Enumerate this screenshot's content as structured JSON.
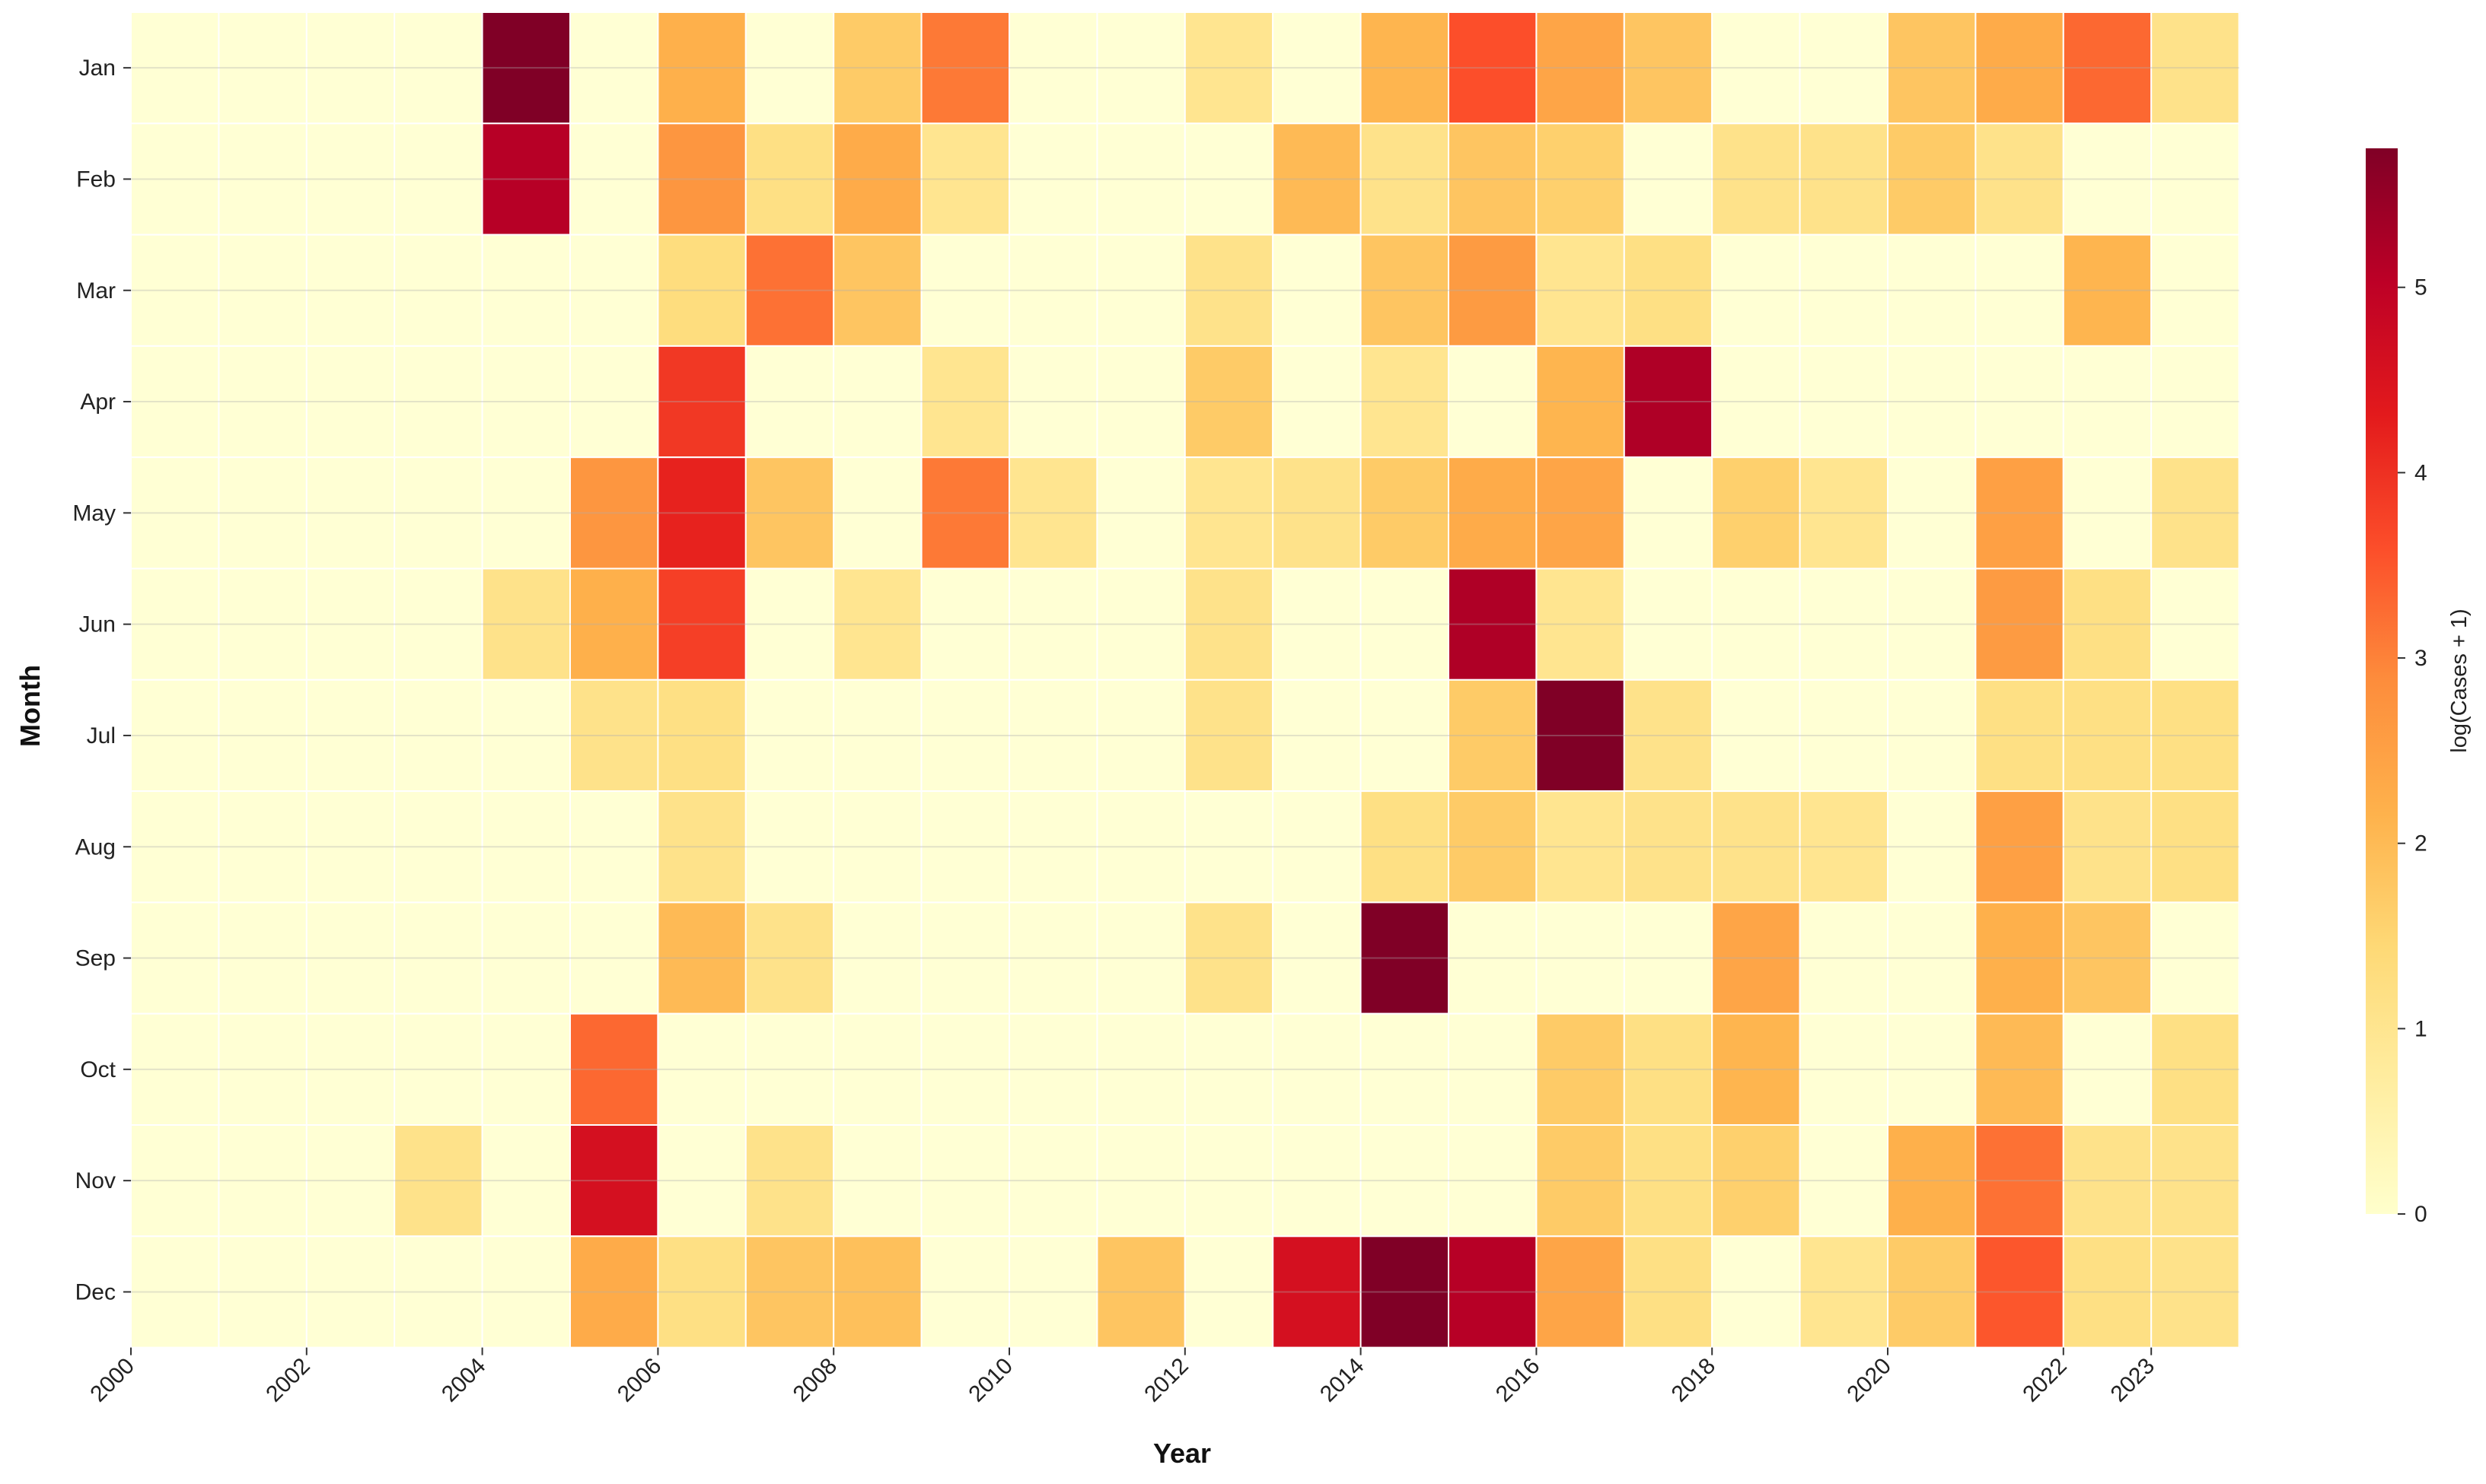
{
  "chart_data": {
    "type": "heatmap",
    "title": "",
    "xlabel": "Year",
    "ylabel": "Month",
    "colorbar_label": "log(Cases + 1)",
    "color_range": [
      0,
      5.75
    ],
    "colorbar_ticks": [
      0,
      1,
      2,
      3,
      4,
      5
    ],
    "colormap": [
      "#ffffcc",
      "#ffeda0",
      "#fed976",
      "#feb24c",
      "#fd8d3c",
      "#fc4e2a",
      "#e31a1c",
      "#bd0026",
      "#800026"
    ],
    "years": [
      2000,
      2001,
      2002,
      2003,
      2004,
      2005,
      2006,
      2007,
      2008,
      2009,
      2010,
      2011,
      2012,
      2013,
      2014,
      2015,
      2016,
      2017,
      2018,
      2019,
      2020,
      2021,
      2022,
      2023
    ],
    "x_tick_labels": [
      "2000",
      "2002",
      "2004",
      "2006",
      "2008",
      "2010",
      "2012",
      "2014",
      "2016",
      "2018",
      "2020",
      "2022",
      "2023"
    ],
    "months": [
      "Jan",
      "Feb",
      "Mar",
      "Apr",
      "May",
      "Jun",
      "Jul",
      "Aug",
      "Sep",
      "Oct",
      "Nov",
      "Dec"
    ],
    "values": [
      [
        0,
        0,
        0,
        0,
        5.75,
        0,
        2.2,
        0,
        1.7,
        3.1,
        0,
        0,
        1.0,
        0,
        2.1,
        3.6,
        2.4,
        1.8,
        0,
        0,
        1.8,
        2.3,
        3.3,
        1.1
      ],
      [
        0,
        0,
        0,
        0,
        5.1,
        0,
        2.7,
        1.2,
        2.3,
        1.0,
        0,
        0,
        0,
        2.0,
        1.1,
        1.8,
        1.6,
        0,
        1.1,
        1.1,
        1.7,
        1.1,
        0,
        0
      ],
      [
        0,
        0,
        0,
        0,
        0,
        0,
        1.3,
        3.2,
        1.8,
        0,
        0,
        0,
        1.1,
        0,
        1.8,
        2.6,
        1.0,
        1.2,
        0,
        0,
        0,
        0,
        2.1,
        0
      ],
      [
        0,
        0,
        0,
        0,
        0,
        0,
        3.9,
        0,
        0,
        1.0,
        0,
        0,
        1.7,
        0,
        1.0,
        0,
        2.1,
        5.2,
        0,
        0,
        0,
        0,
        0,
        0
      ],
      [
        0,
        0,
        0,
        0,
        0,
        2.7,
        4.2,
        1.8,
        0,
        3.1,
        1.0,
        0,
        1.0,
        1.1,
        1.7,
        2.3,
        2.4,
        0,
        1.6,
        1.0,
        0,
        2.5,
        0,
        1.1
      ],
      [
        0,
        0,
        0,
        0,
        1.1,
        2.2,
        3.8,
        0,
        1.0,
        0,
        0,
        0,
        1.1,
        0,
        0,
        5.2,
        1.0,
        0,
        0,
        0,
        0,
        2.6,
        1.2,
        0
      ],
      [
        0,
        0,
        0,
        0,
        0,
        1.1,
        1.2,
        0,
        0,
        0,
        0,
        0,
        1.1,
        0,
        0,
        1.7,
        5.75,
        1.1,
        0,
        0,
        0,
        1.2,
        1.2,
        1.2
      ],
      [
        0,
        0,
        0,
        0,
        0,
        0,
        1.1,
        0,
        0,
        0,
        0,
        0,
        0,
        0,
        1.2,
        1.7,
        1.0,
        1.1,
        1.1,
        1.0,
        0,
        2.5,
        1.1,
        1.2
      ],
      [
        0,
        0,
        0,
        0,
        0,
        0,
        2.0,
        1.1,
        0,
        0,
        0,
        0,
        1.1,
        0,
        5.75,
        0,
        0,
        0,
        2.4,
        0,
        0,
        2.2,
        1.8,
        0
      ],
      [
        0,
        0,
        0,
        0,
        0,
        3.3,
        0,
        0,
        0,
        0,
        0,
        0,
        0,
        0,
        0,
        0,
        1.7,
        1.2,
        2.1,
        0,
        0,
        2.0,
        0,
        1.2
      ],
      [
        0,
        0,
        0,
        1.1,
        0,
        4.6,
        0,
        1.1,
        0,
        0,
        0,
        0,
        0,
        0,
        0,
        0,
        1.7,
        1.2,
        1.6,
        0,
        2.2,
        3.2,
        1.1,
        1.1
      ],
      [
        0,
        0,
        0,
        0,
        0,
        2.3,
        1.2,
        1.8,
        1.9,
        0,
        0,
        1.8,
        0,
        4.6,
        5.75,
        5.1,
        2.4,
        1.2,
        0,
        1.0,
        1.7,
        3.5,
        1.2,
        1.1
      ]
    ]
  }
}
